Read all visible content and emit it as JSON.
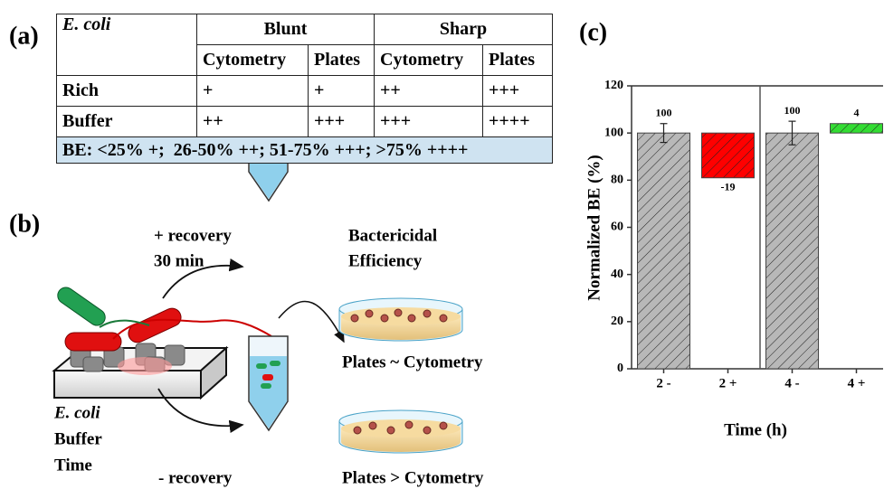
{
  "panel_a": {
    "label": "(a)",
    "table": {
      "header": [
        "E. coli",
        "Blunt",
        "Sharp"
      ],
      "subheader": [
        "Cytometry",
        "Plates",
        "Cytometry",
        "Plates"
      ],
      "rows": [
        [
          "Rich",
          "+",
          "+",
          "++",
          "+++"
        ],
        [
          "Buffer",
          "++",
          "+++",
          "+++",
          "++++"
        ]
      ],
      "footer": "BE: <25% +;  26-50% ++; 51-75% +++; >75% ++++"
    }
  },
  "panel_b": {
    "label": "(b)",
    "top_arrow": [
      "+ recovery",
      "30 min"
    ],
    "top_result": [
      "Bactericidal",
      "Efficiency"
    ],
    "top_outcome": "Plates ~ Cytometry",
    "conditions": [
      "E. coli",
      "Buffer",
      "Time"
    ],
    "bottom_arrow": "- recovery",
    "bottom_outcome": "Plates > Cytometry"
  },
  "chart_data": {
    "label": "(c)",
    "type": "waterfall",
    "y_label": "Normalized BE (%)",
    "x_label": "Time (h)",
    "categories": [
      "2 -",
      "2 +",
      "4 -",
      "4 +"
    ],
    "values": [
      100,
      -19,
      100,
      4
    ],
    "errors": [
      4,
      null,
      5,
      null
    ],
    "colors": [
      "#b8b8b8",
      "#ff0000",
      "#b8b8b8",
      "#33dd33"
    ],
    "ylim": [
      0,
      120
    ],
    "yticks": [
      0,
      20,
      40,
      60,
      80,
      100,
      120
    ],
    "grid": false
  }
}
